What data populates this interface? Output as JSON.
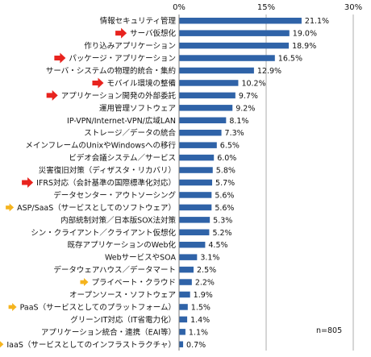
{
  "chart_data": {
    "type": "bar",
    "orientation": "horizontal",
    "unit": "%",
    "xlim": [
      0,
      30
    ],
    "ticks": [
      "0%",
      "15%",
      "30%"
    ],
    "grid": true,
    "bar_color": "#2f63a8",
    "categories": [
      "情報セキュリティ管理",
      "サーバ仮想化",
      "作り込みアプリケーション",
      "パッケージ・アプリケーション",
      "サーバ・システムの物理的統合・集約",
      "モバイル環境の整備",
      "アプリケーション開発の外部委託",
      "運用管理ソフトウェア",
      "IP-VPN/Internet-VPN/広域LAN",
      "ストレージ／データの統合",
      "メインフレームのUnixやWindowsへの移行",
      "ビデオ会議システム／サービス",
      "災害復旧対策（ディザスタ・リカバリ）",
      "IFRS対応（会計基準の国際標準化対応）",
      "データセンター・アウトソーシング",
      "ASP/SaaS（サービスとしてのソフトウェア）",
      "内部統制対策／日本版SOX法対策",
      "シン・クライアント／クライアント仮想化",
      "既存アプリケーションのWeb化",
      "WebサービスやSOA",
      "データウェアハウス／データマート",
      "プライベート・クラウド",
      "オープンソース・ソフトウェア",
      "PaaS（サービスとしてのプラットフォーム）",
      "グリーンIT対応（IT省電力化）",
      "アプリケーション統合・連携（EAI等）",
      "IaaS（サービスとしてのインフラストラクチャ）"
    ],
    "values": [
      21.1,
      19.0,
      18.9,
      16.5,
      12.9,
      10.2,
      9.7,
      9.2,
      8.1,
      7.3,
      6.5,
      6.0,
      5.8,
      5.7,
      5.6,
      5.6,
      5.3,
      5.2,
      4.5,
      3.1,
      2.5,
      2.2,
      1.9,
      1.5,
      1.4,
      1.1,
      0.7
    ],
    "value_labels": [
      "21.1%",
      "19.0%",
      "18.9%",
      "16.5%",
      "12.9%",
      "10.2%",
      "9.7%",
      "9.2%",
      "8.1%",
      "7.3%",
      "6.5%",
      "6.0%",
      "5.8%",
      "5.7%",
      "5.6%",
      "5.6%",
      "5.3%",
      "5.2%",
      "4.5%",
      "3.1%",
      "2.5%",
      "2.2%",
      "1.9%",
      "1.5%",
      "1.4%",
      "1.1%",
      "0.7%"
    ],
    "markers": [
      "",
      "red-arrow",
      "",
      "red-arrow",
      "",
      "red-arrow",
      "red-arrow",
      "",
      "",
      "",
      "",
      "",
      "",
      "red-arrow",
      "",
      "orange-arrow",
      "",
      "",
      "",
      "",
      "",
      "orange-arrow",
      "",
      "orange-arrow",
      "",
      "",
      "orange-arrow"
    ],
    "marker_colors": {
      "red-arrow": "#e8231e",
      "orange-arrow": "#f5b41e"
    },
    "note": "n=805"
  }
}
